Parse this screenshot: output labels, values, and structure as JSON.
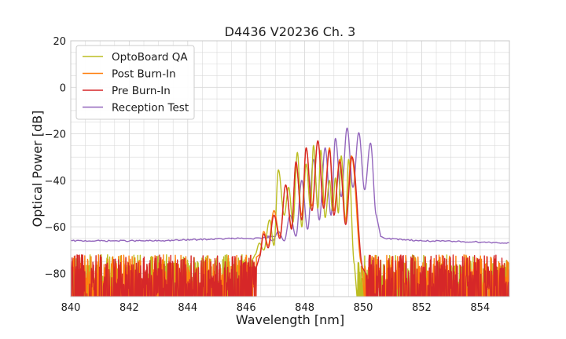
{
  "chart_data": {
    "type": "line",
    "title": "D4436 V20236 Ch. 3",
    "xlabel": "Wavelength [nm]",
    "ylabel": "Optical Power [dB]",
    "xlim": [
      840,
      855
    ],
    "ylim": [
      -90,
      20
    ],
    "xticks": [
      840,
      842,
      844,
      846,
      848,
      850,
      852,
      854
    ],
    "yticks": [
      20,
      0,
      -20,
      -40,
      -60,
      -80
    ],
    "xtick_labels": [
      "840",
      "842",
      "844",
      "846",
      "848",
      "850",
      "852",
      "854"
    ],
    "ytick_labels": [
      "20",
      "0",
      "−20",
      "−40",
      "−60",
      "−80"
    ],
    "grid": true,
    "legend_position": "top-left",
    "noise_floor": [
      -90,
      -72
    ],
    "series": [
      {
        "name": "OptoBoard QA",
        "color": "#bcbd22",
        "noise_start": 846.2,
        "noise_end": 849.8,
        "peaks": [
          {
            "x": 846.45,
            "y": -67
          },
          {
            "x": 846.8,
            "y": -57
          },
          {
            "x": 847.1,
            "y": -35.5
          },
          {
            "x": 847.45,
            "y": -43
          },
          {
            "x": 847.75,
            "y": -28
          },
          {
            "x": 848.05,
            "y": -33
          },
          {
            "x": 848.3,
            "y": -25
          },
          {
            "x": 848.55,
            "y": -27
          },
          {
            "x": 848.85,
            "y": -40
          },
          {
            "x": 849.05,
            "y": -39
          },
          {
            "x": 849.25,
            "y": -29.5
          },
          {
            "x": 849.5,
            "y": -31
          }
        ],
        "valleys": [
          {
            "x": 846.3,
            "y": -72
          },
          {
            "x": 846.6,
            "y": -70
          },
          {
            "x": 846.95,
            "y": -68
          },
          {
            "x": 847.3,
            "y": -55
          },
          {
            "x": 847.6,
            "y": -58
          },
          {
            "x": 847.9,
            "y": -60
          },
          {
            "x": 848.2,
            "y": -52
          },
          {
            "x": 848.45,
            "y": -52
          },
          {
            "x": 848.7,
            "y": -56
          },
          {
            "x": 848.95,
            "y": -53
          },
          {
            "x": 849.15,
            "y": -54
          },
          {
            "x": 849.4,
            "y": -58
          },
          {
            "x": 849.7,
            "y": -76
          }
        ]
      },
      {
        "name": "Post Burn-In",
        "color": "#ff7f0e",
        "noise_start": 846.35,
        "noise_end": 850.05,
        "peaks": [
          {
            "x": 846.6,
            "y": -62
          },
          {
            "x": 846.95,
            "y": -53
          },
          {
            "x": 847.35,
            "y": -42
          },
          {
            "x": 847.7,
            "y": -33
          },
          {
            "x": 848.05,
            "y": -26
          },
          {
            "x": 848.45,
            "y": -23
          },
          {
            "x": 848.85,
            "y": -26
          },
          {
            "x": 849.2,
            "y": -31
          },
          {
            "x": 849.6,
            "y": -29.5
          }
        ],
        "valleys": [
          {
            "x": 846.45,
            "y": -72
          },
          {
            "x": 846.75,
            "y": -68
          },
          {
            "x": 847.15,
            "y": -64
          },
          {
            "x": 847.55,
            "y": -60
          },
          {
            "x": 847.9,
            "y": -55
          },
          {
            "x": 848.25,
            "y": -51
          },
          {
            "x": 848.65,
            "y": -50
          },
          {
            "x": 849.0,
            "y": -53
          },
          {
            "x": 849.4,
            "y": -57
          },
          {
            "x": 849.95,
            "y": -76
          }
        ]
      },
      {
        "name": "Pre Burn-In",
        "color": "#d62728",
        "noise_start": 846.35,
        "noise_end": 850.1,
        "peaks": [
          {
            "x": 846.6,
            "y": -63
          },
          {
            "x": 846.95,
            "y": -55
          },
          {
            "x": 847.35,
            "y": -42
          },
          {
            "x": 847.7,
            "y": -32
          },
          {
            "x": 848.05,
            "y": -26
          },
          {
            "x": 848.45,
            "y": -23
          },
          {
            "x": 848.85,
            "y": -27
          },
          {
            "x": 849.2,
            "y": -32
          },
          {
            "x": 849.62,
            "y": -30
          }
        ],
        "valleys": [
          {
            "x": 846.45,
            "y": -73
          },
          {
            "x": 846.75,
            "y": -69
          },
          {
            "x": 847.15,
            "y": -65
          },
          {
            "x": 847.55,
            "y": -61
          },
          {
            "x": 847.9,
            "y": -57
          },
          {
            "x": 848.25,
            "y": -53
          },
          {
            "x": 848.65,
            "y": -52
          },
          {
            "x": 849.0,
            "y": -55
          },
          {
            "x": 849.4,
            "y": -59
          },
          {
            "x": 850.0,
            "y": -78
          }
        ]
      },
      {
        "name": "Reception Test",
        "color": "#9467bd",
        "baseline_left": [
          {
            "x": 840,
            "y": -66
          },
          {
            "x": 843,
            "y": -66
          },
          {
            "x": 845.5,
            "y": -65
          },
          {
            "x": 846.5,
            "y": -65
          },
          {
            "x": 847.0,
            "y": -64
          }
        ],
        "peaks": [
          {
            "x": 846.7,
            "y": -64
          },
          {
            "x": 847.1,
            "y": -62
          },
          {
            "x": 847.5,
            "y": -55
          },
          {
            "x": 847.9,
            "y": -40
          },
          {
            "x": 848.3,
            "y": -31
          },
          {
            "x": 848.7,
            "y": -26
          },
          {
            "x": 849.05,
            "y": -22
          },
          {
            "x": 849.45,
            "y": -17.5
          },
          {
            "x": 849.85,
            "y": -19.5
          },
          {
            "x": 850.25,
            "y": -24
          }
        ],
        "valleys": [
          {
            "x": 846.9,
            "y": -66
          },
          {
            "x": 847.3,
            "y": -66
          },
          {
            "x": 847.7,
            "y": -64
          },
          {
            "x": 848.1,
            "y": -61
          },
          {
            "x": 848.5,
            "y": -57
          },
          {
            "x": 848.9,
            "y": -55
          },
          {
            "x": 849.25,
            "y": -47
          },
          {
            "x": 849.65,
            "y": -43
          },
          {
            "x": 850.05,
            "y": -44
          },
          {
            "x": 850.45,
            "y": -55
          }
        ],
        "baseline_right": [
          {
            "x": 850.6,
            "y": -64
          },
          {
            "x": 850.8,
            "y": -65
          },
          {
            "x": 852,
            "y": -66
          },
          {
            "x": 854,
            "y": -66.5
          },
          {
            "x": 855,
            "y": -67
          }
        ]
      }
    ]
  }
}
